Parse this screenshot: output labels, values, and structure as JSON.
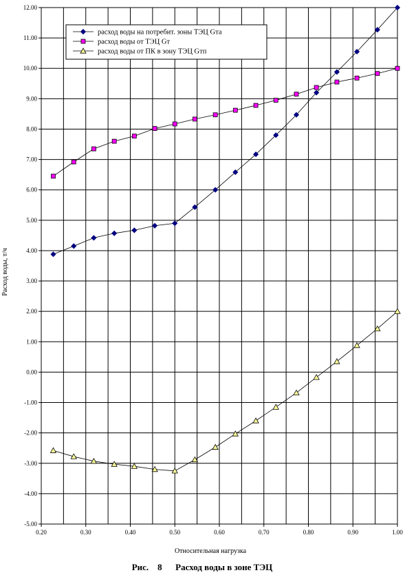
{
  "chart_data": {
    "type": "line",
    "xlabel": "Относительная нагрузка",
    "ylabel": "Расход воды, т/ч",
    "caption": "Рис.    8      Расход воды в зоне ТЭЦ",
    "xlim": [
      0.2,
      1.0
    ],
    "ylim": [
      -5.0,
      12.0
    ],
    "xticks": [
      0.2,
      0.3,
      0.4,
      0.5,
      0.6,
      0.7,
      0.8,
      0.9,
      1.0
    ],
    "xtick_labels": [
      "0.20",
      "0.30",
      "0.40",
      "0.50",
      "0.60",
      "0.70",
      "0.80",
      "0.90",
      "1.00"
    ],
    "yticks": [
      -5,
      -4,
      -3,
      -2,
      -1,
      0,
      1,
      2,
      3,
      4,
      5,
      6,
      7,
      8,
      9,
      10,
      11,
      12
    ],
    "ytick_labels": [
      "-5.00",
      "-4.00",
      "-3.00",
      "-2.00",
      "-1.00",
      "0.00",
      "1.00",
      "2.00",
      "3.00",
      "4.00",
      "5.00",
      "6.00",
      "7.00",
      "8.00",
      "9.00",
      "10.00",
      "11.00",
      "12.00"
    ],
    "grid": true,
    "legend_position": "top-left",
    "x": [
      0.227,
      0.273,
      0.318,
      0.364,
      0.409,
      0.455,
      0.5,
      0.545,
      0.591,
      0.636,
      0.682,
      0.727,
      0.773,
      0.818,
      0.864,
      0.909,
      0.955,
      1.0
    ],
    "series": [
      {
        "name": "расход воды на потребит. зоны ТЭЦ Gта",
        "marker": "diamond",
        "color": "#000080",
        "values": [
          3.88,
          4.15,
          4.42,
          4.57,
          4.67,
          4.82,
          4.9,
          5.43,
          6.0,
          6.58,
          7.17,
          7.8,
          8.47,
          9.2,
          9.88,
          10.55,
          11.27,
          12.0
        ]
      },
      {
        "name": "расход воды от ТЭЦ Gт",
        "marker": "square",
        "color": "#ff00ff",
        "values": [
          6.45,
          6.92,
          7.35,
          7.6,
          7.77,
          8.02,
          8.17,
          8.33,
          8.47,
          8.62,
          8.78,
          8.95,
          9.15,
          9.37,
          9.55,
          9.68,
          9.83,
          10.0
        ]
      },
      {
        "name": "расход воды от ПК в зону ТЭЦ Gтп",
        "marker": "triangle",
        "color": "#ffff99",
        "values": [
          -2.58,
          -2.78,
          -2.93,
          -3.03,
          -3.1,
          -3.2,
          -3.25,
          -2.88,
          -2.47,
          -2.03,
          -1.6,
          -1.15,
          -0.68,
          -0.17,
          0.35,
          0.88,
          1.43,
          2.0
        ]
      }
    ]
  }
}
